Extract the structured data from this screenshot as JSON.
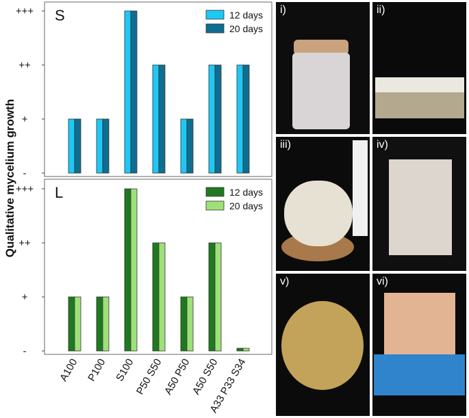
{
  "chart_data": {
    "type": "bar",
    "ylabel": "Qualitative mycelium growth",
    "categories": [
      "A100",
      "P100",
      "S100",
      "P50 S50",
      "A50 P50",
      "A50 S50",
      "A33 P33 S34"
    ],
    "yticks": [
      "-",
      "+",
      "++",
      "+++"
    ],
    "ylim": [
      0,
      3
    ],
    "legend_position": "top-right",
    "panels": [
      {
        "label": "S",
        "series": [
          {
            "name": "12 days",
            "color": "#1ec8f5",
            "values": [
              1,
              1,
              3,
              2,
              1,
              2,
              2
            ]
          },
          {
            "name": "20 days",
            "color": "#0e6e92",
            "values": [
              1,
              1,
              3,
              2,
              1,
              2,
              2
            ]
          }
        ]
      },
      {
        "label": "L",
        "series": [
          {
            "name": "12 days",
            "color": "#1f7a1f",
            "values": [
              1,
              1,
              3,
              2,
              1,
              2,
              0.05
            ]
          },
          {
            "name": "20 days",
            "color": "#9ee07a",
            "values": [
              1,
              1,
              3,
              2,
              1,
              2,
              0.05
            ]
          }
        ]
      }
    ]
  },
  "photos": [
    "i)",
    "ii)",
    "iii)",
    "iv)",
    "v)",
    "vi)"
  ]
}
